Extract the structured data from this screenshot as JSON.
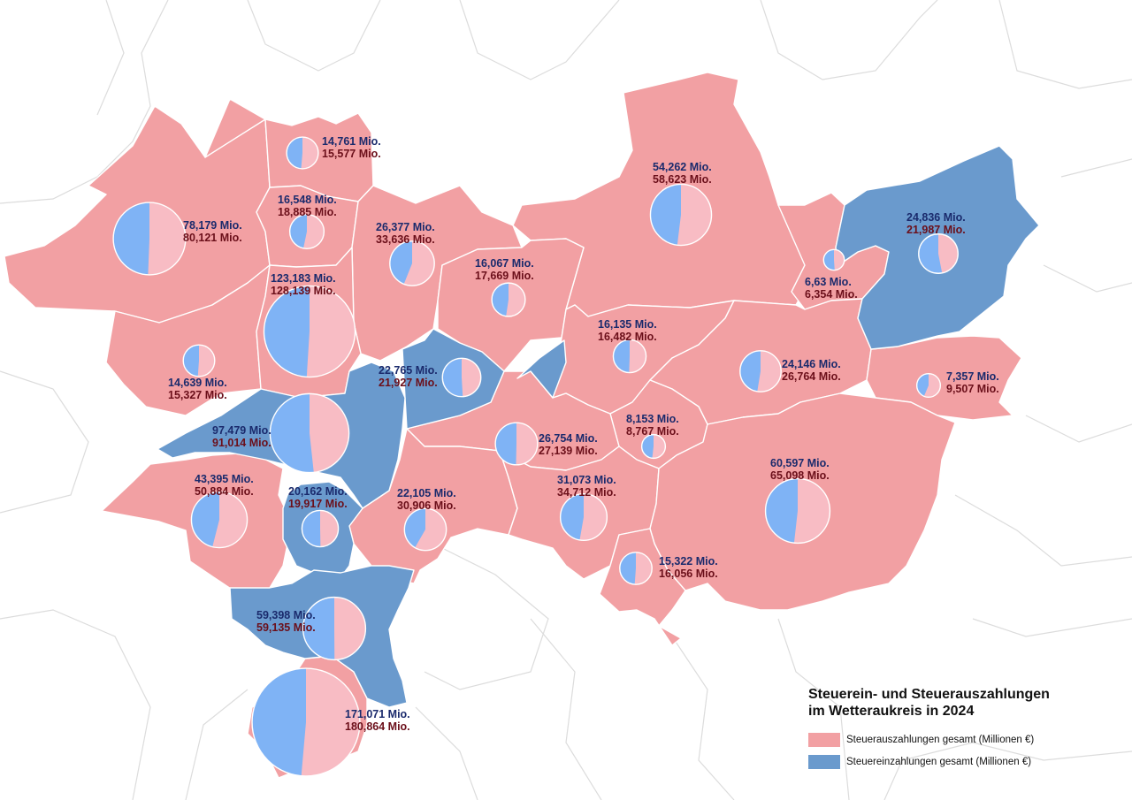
{
  "legend": {
    "title_line1": "Steuerein- und Steuerauszahlungen",
    "title_line2": "im Wetteraukreis in 2024",
    "payout_label": "Steuerauszahlungen gesamt (Millionen €)",
    "income_label": "Steuereinzahlungen gesamt (Millionen €)"
  },
  "colors": {
    "payout_region": "#f2a0a3",
    "income_region": "#6a9acd",
    "pie_income": "#7fb3f5",
    "pie_payout": "#f8bcc4",
    "income_text": "#1a2a6c",
    "payout_text": "#6b0f1a",
    "border": "#ffffff",
    "background_lines": "#dcdcdc"
  },
  "municipalities": [
    {
      "income": "14,761 Mio.",
      "payout": "15,577 Mio.",
      "income_value": 14.761,
      "payout_value": 15.577,
      "majority": "payout"
    },
    {
      "income": "78,179 Mio.",
      "payout": "80,121 Mio.",
      "income_value": 78.179,
      "payout_value": 80.121,
      "majority": "payout"
    },
    {
      "income": "16,548 Mio.",
      "payout": "18,885 Mio.",
      "income_value": 16.548,
      "payout_value": 18.885,
      "majority": "payout"
    },
    {
      "income": "26,377 Mio.",
      "payout": "33,636 Mio.",
      "income_value": 26.377,
      "payout_value": 33.636,
      "majority": "payout"
    },
    {
      "income": "54,262 Mio.",
      "payout": "58,623 Mio.",
      "income_value": 54.262,
      "payout_value": 58.623,
      "majority": "payout"
    },
    {
      "income": "24,836 Mio.",
      "payout": "21,987 Mio.",
      "income_value": 24.836,
      "payout_value": 21.987,
      "majority": "income"
    },
    {
      "income": "123,183 Mio.",
      "payout": "128,139 Mio.",
      "income_value": 123.183,
      "payout_value": 128.139,
      "majority": "payout"
    },
    {
      "income": "16,067 Mio.",
      "payout": "17,669 Mio.",
      "income_value": 16.067,
      "payout_value": 17.669,
      "majority": "payout"
    },
    {
      "income": "6,63 Mio.",
      "payout": "6,354 Mio.",
      "income_value": 6.63,
      "payout_value": 6.354,
      "majority": "income"
    },
    {
      "income": "16,135 Mio.",
      "payout": "16,482 Mio.",
      "income_value": 16.135,
      "payout_value": 16.482,
      "majority": "payout"
    },
    {
      "income": "14,639 Mio.",
      "payout": "15,327 Mio.",
      "income_value": 14.639,
      "payout_value": 15.327,
      "majority": "payout"
    },
    {
      "income": "22,765 Mio.",
      "payout": "21,927 Mio.",
      "income_value": 22.765,
      "payout_value": 21.927,
      "majority": "income"
    },
    {
      "income": "24,146 Mio.",
      "payout": "26,764 Mio.",
      "income_value": 24.146,
      "payout_value": 26.764,
      "majority": "payout"
    },
    {
      "income": "7,357 Mio.",
      "payout": "9,507 Mio.",
      "income_value": 7.357,
      "payout_value": 9.507,
      "majority": "payout"
    },
    {
      "income": "97,479 Mio.",
      "payout": "91,014 Mio.",
      "income_value": 97.479,
      "payout_value": 91.014,
      "majority": "income"
    },
    {
      "income": "8,153 Mio.",
      "payout": "8,767 Mio.",
      "income_value": 8.153,
      "payout_value": 8.767,
      "majority": "payout"
    },
    {
      "income": "26,754 Mio.",
      "payout": "27,139 Mio.",
      "income_value": 26.754,
      "payout_value": 27.139,
      "majority": "payout"
    },
    {
      "income": "43,395 Mio.",
      "payout": "50,884 Mio.",
      "income_value": 43.395,
      "payout_value": 50.884,
      "majority": "payout"
    },
    {
      "income": "20,162 Mio.",
      "payout": "19,917 Mio.",
      "income_value": 20.162,
      "payout_value": 19.917,
      "majority": "income"
    },
    {
      "income": "22,105 Mio.",
      "payout": "30,906 Mio.",
      "income_value": 22.105,
      "payout_value": 30.906,
      "majority": "payout"
    },
    {
      "income": "31,073 Mio.",
      "payout": "34,712 Mio.",
      "income_value": 31.073,
      "payout_value": 34.712,
      "majority": "payout"
    },
    {
      "income": "60,597 Mio.",
      "payout": "65,098 Mio.",
      "income_value": 60.597,
      "payout_value": 65.098,
      "majority": "payout"
    },
    {
      "income": "15,322 Mio.",
      "payout": "16,056 Mio.",
      "income_value": 15.322,
      "payout_value": 16.056,
      "majority": "payout"
    },
    {
      "income": "59,398 Mio.",
      "payout": "59,135 Mio.",
      "income_value": 59.398,
      "payout_value": 59.135,
      "majority": "income"
    },
    {
      "income": "171,071 Mio.",
      "payout": "180,864 Mio.",
      "income_value": 171.071,
      "payout_value": 180.864,
      "majority": "payout"
    }
  ]
}
